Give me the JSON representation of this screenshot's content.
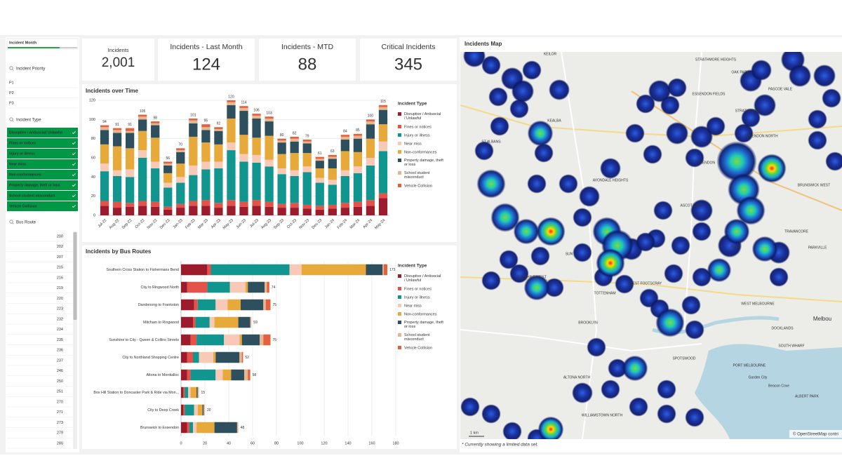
{
  "dashboard": {
    "filters": {
      "month": {
        "title": "Incident Month"
      },
      "priority": {
        "title": "Incident Priority",
        "items": [
          "P1",
          "P2",
          "P3"
        ]
      },
      "type": {
        "title": "Incident Type",
        "items": [
          "Disruptive / Antisocial/ Unlawful",
          "Fines or notices",
          "Injury or illness",
          "Near miss",
          "Non-conformances",
          "Property damage, theft or loss",
          "School student misconduct",
          "Vehicle Collision"
        ]
      },
      "route": {
        "title": "Bus Route",
        "items": [
          "200",
          "202",
          "207",
          "215",
          "216",
          "219",
          "220",
          "223",
          "232",
          "234",
          "235",
          "236",
          "237",
          "246",
          "250",
          "251",
          "270",
          "271",
          "273",
          "279",
          "280"
        ]
      }
    },
    "kpis": [
      {
        "label": "Incidents",
        "value": "2,001"
      },
      {
        "label": "Incidents - Last Month",
        "value": "124"
      },
      {
        "label": "Incidents - MTD",
        "value": "88"
      },
      {
        "label": "Critical Incidents",
        "value": "345"
      }
    ],
    "map": {
      "title": "Incidents Map",
      "places": [
        "KEILOR",
        "STRATHMORE HEIGHTS",
        "OAK PARK",
        "PASCOE VALE",
        "ESSENDON FIELDS",
        "STRATHMORE",
        "ESSENDON NORTH",
        "KEALBA",
        "ST ALBANS",
        "ESSENDON",
        "AVONDALE HEIGHTS",
        "BRUNSWICK WEST",
        "ASCOT VALE",
        "TRAVANCORE",
        "PARKVILLE",
        "FLEM",
        "SUN",
        "SUNSHINE WEST",
        "WEST FOOTSCRAY",
        "TOTTENHAM",
        "WEST MELBOURNE",
        "DOCKLANDS",
        "BROOKLYN",
        "SOUTH WHARF",
        "SPOTSWOOD",
        "PORT MELBOURNE",
        "ALTONA NORTH",
        "WILLIAMSTOWN NORTH",
        "ALBERT PARK",
        "Melbou",
        "Beacon Cove",
        "Garden City"
      ],
      "scale": "1 km",
      "attribution": "© OpenStreetMap contri",
      "note": "* Currently showing a limited data set."
    }
  },
  "chart_data": [
    {
      "type": "stacked-bar",
      "title": "Incidents over Time",
      "legend_title": "Incident Type",
      "legend": "right",
      "categories": [
        "Jul-22",
        "Aug-22",
        "Sep-22",
        "Oct-22",
        "Nov-22",
        "Dec-22",
        "Jan-23",
        "Feb-23",
        "Mar-23",
        "Apr-23",
        "May-23",
        "Jun-23",
        "Jul-23",
        "Aug-23",
        "Sep-23",
        "Oct-23",
        "Nov-23",
        "Dec-23",
        "Jan-24",
        "Feb-24",
        "Mar-24",
        "Apr-24",
        "May-24"
      ],
      "totals": [
        94,
        91,
        91,
        105,
        98,
        56,
        70,
        101,
        95,
        92,
        120,
        114,
        106,
        103,
        80,
        82,
        79,
        61,
        63,
        84,
        85,
        100,
        115
      ],
      "series": [
        {
          "name": "Disruptive / Antisocial / Unlawful",
          "color": "#9c1c2e",
          "values": [
            10,
            8,
            9,
            10,
            9,
            6,
            8,
            10,
            10,
            8,
            10,
            9,
            10,
            9,
            8,
            8,
            7,
            6,
            7,
            8,
            9,
            10,
            18
          ]
        },
        {
          "name": "Fines or notices",
          "color": "#e5524a",
          "values": [
            5,
            6,
            4,
            5,
            5,
            3,
            4,
            5,
            6,
            5,
            6,
            5,
            6,
            5,
            4,
            5,
            4,
            4,
            4,
            5,
            5,
            6,
            5
          ]
        },
        {
          "name": "Injury or illness",
          "color": "#11968f",
          "values": [
            31,
            27,
            27,
            45,
            35,
            20,
            22,
            27,
            32,
            36,
            52,
            42,
            39,
            37,
            31,
            28,
            34,
            24,
            21,
            28,
            30,
            36,
            44
          ]
        },
        {
          "name": "Near miss",
          "color": "#f8c9b6",
          "values": [
            8,
            6,
            8,
            8,
            7,
            5,
            6,
            10,
            8,
            7,
            8,
            8,
            8,
            7,
            6,
            6,
            6,
            5,
            5,
            6,
            7,
            8,
            10
          ]
        },
        {
          "name": "Non-conformances",
          "color": "#e8a93b",
          "values": [
            20,
            25,
            22,
            20,
            25,
            10,
            14,
            30,
            20,
            18,
            25,
            20,
            18,
            25,
            15,
            18,
            14,
            10,
            12,
            20,
            15,
            20,
            18
          ]
        },
        {
          "name": "Property damage, theft or loss",
          "color": "#2d4f5e",
          "values": [
            15,
            14,
            16,
            12,
            13,
            8,
            12,
            14,
            13,
            14,
            14,
            25,
            20,
            15,
            12,
            12,
            10,
            8,
            10,
            12,
            14,
            15,
            15
          ]
        },
        {
          "name": "School student misconduct",
          "color": "#e6b68f",
          "values": [
            3,
            3,
            2,
            3,
            2,
            2,
            2,
            3,
            3,
            2,
            3,
            3,
            3,
            3,
            2,
            3,
            2,
            2,
            2,
            3,
            3,
            3,
            3
          ]
        },
        {
          "name": "Vehicle Collision",
          "color": "#e2613f",
          "values": [
            2,
            2,
            3,
            2,
            2,
            2,
            2,
            2,
            3,
            2,
            2,
            2,
            2,
            2,
            2,
            2,
            2,
            2,
            2,
            2,
            2,
            2,
            2
          ]
        }
      ],
      "ylim": [
        0,
        120
      ],
      "yticks": [
        0,
        20,
        40,
        60,
        80,
        100,
        120
      ],
      "grid": true
    },
    {
      "type": "stacked-barh",
      "title": "Incidents by Bus Routes",
      "legend_title": "Incident Type",
      "legend": "right",
      "categories": [
        "Southern Cross Station to Fishermans Bend",
        "City to Ringwood North",
        "Dandenong to Frankston",
        "Mitcham to Ringwood",
        "Sunshine to City - Queen & Collins Streets",
        "City to Northland Shopping Centre",
        "Altona to Mordialloc",
        "Box Hill Station to Doncaster Park & Ride via Mon...",
        "City to Deep Creek",
        "Brunswick to Essendon"
      ],
      "totals": [
        173,
        74,
        75,
        59,
        75,
        52,
        58,
        15,
        20,
        48
      ],
      "series": [
        {
          "name": "Disruptive / Antisocial / Unlawful",
          "color": "#9c1c2e",
          "values": [
            22,
            5,
            11,
            10,
            8,
            5,
            5,
            2,
            2,
            5
          ]
        },
        {
          "name": "Fines or notices",
          "color": "#e5524a",
          "values": [
            3,
            17,
            3,
            2,
            5,
            5,
            3,
            1,
            1,
            2
          ]
        },
        {
          "name": "Injury or illness",
          "color": "#11968f",
          "values": [
            66,
            19,
            15,
            12,
            23,
            5,
            21,
            3,
            8,
            3
          ]
        },
        {
          "name": "Near miss",
          "color": "#f8c9b6",
          "values": [
            10,
            13,
            10,
            4,
            13,
            12,
            6,
            2,
            3,
            3
          ]
        },
        {
          "name": "Non-conformances",
          "color": "#e8a93b",
          "values": [
            54,
            2,
            11,
            20,
            2,
            2,
            7,
            5,
            4,
            15
          ]
        },
        {
          "name": "Property damage, theft or loss",
          "color": "#2d4f5e",
          "values": [
            14,
            14,
            19,
            10,
            15,
            20,
            11,
            1,
            1,
            19
          ]
        },
        {
          "name": "School student misconduct",
          "color": "#e6b68f",
          "values": [
            1,
            2,
            2,
            1,
            3,
            2,
            3,
            1,
            1,
            1
          ]
        },
        {
          "name": "Vehicle Collision",
          "color": "#e2613f",
          "values": [
            3,
            2,
            4,
            0,
            6,
            1,
            2,
            0,
            0,
            0
          ]
        }
      ],
      "xlim": [
        0,
        180
      ],
      "xticks": [
        0,
        20,
        40,
        60,
        80,
        100,
        120,
        140,
        160,
        180
      ],
      "grid": true
    }
  ]
}
